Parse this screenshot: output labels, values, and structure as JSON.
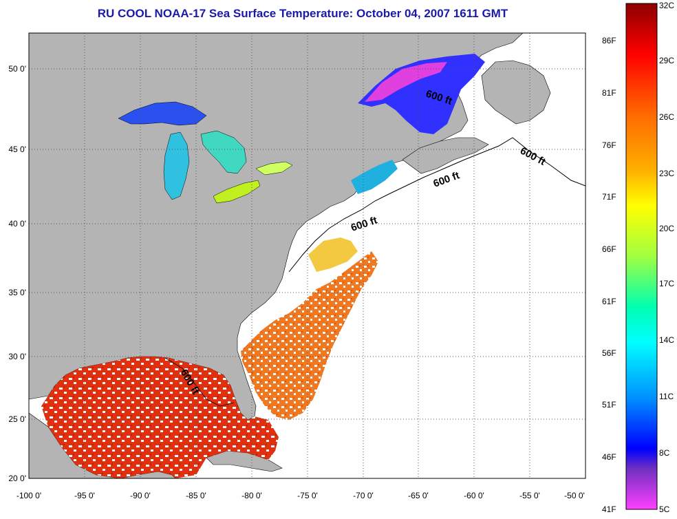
{
  "title": "RU COOL  NOAA-17  Sea Surface Temperature:  October 04, 2007 1611 GMT",
  "map": {
    "lon_ticks": [
      "-100 0'",
      "-95 0'",
      "-90 0'",
      "-85 0'",
      "-80 0'",
      "-75 0'",
      "-70 0'",
      "-65 0'",
      "-60 0'",
      "-55 0'",
      "-50 0'"
    ],
    "lat_ticks": [
      "50 0'",
      "45 0'",
      "40 0'",
      "35 0'",
      "30 0'",
      "25 0'",
      "20 0'"
    ],
    "contour_labels": [
      "600 ft",
      "600 ft",
      "600 ft",
      "600 ft",
      "600 ft"
    ],
    "colors": {
      "land": "#b4b4b4",
      "ocean_nodata": "#ffffff",
      "grid": "#555555"
    }
  },
  "colorbar": {
    "fahrenheit_labels": [
      "86F",
      "81F",
      "76F",
      "71F",
      "66F",
      "61F",
      "56F",
      "51F",
      "46F",
      "41F"
    ],
    "celsius_labels": [
      "32C",
      "29C",
      "26C",
      "23C",
      "20C",
      "17C",
      "14C",
      "11C",
      "8C",
      "5C"
    ],
    "range_c": [
      5,
      32
    ]
  }
}
